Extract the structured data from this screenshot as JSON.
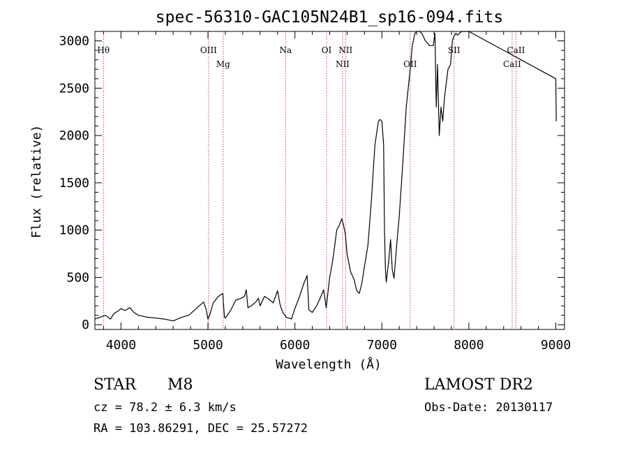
{
  "chart_data": {
    "type": "line",
    "title": "spec-56310-GAC105N24B1_sp16-094.fits",
    "xlabel": "Wavelength (Å)",
    "ylabel": "Flux (relative)",
    "xlim": [
      3700,
      9100
    ],
    "ylim": [
      -50,
      3100
    ],
    "xticks": [
      4000,
      5000,
      6000,
      7000,
      8000,
      9000
    ],
    "yticks": [
      0,
      500,
      1000,
      1500,
      2000,
      2500,
      3000
    ],
    "xtick_labels": [
      "4000",
      "5000",
      "6000",
      "7000",
      "8000",
      "9000"
    ],
    "ytick_labels": [
      "0",
      "500",
      "1000",
      "1500",
      "2000",
      "2500",
      "3000"
    ],
    "grid": false,
    "lines": [
      {
        "label": "Hθ",
        "x": 3798,
        "pos": "top"
      },
      {
        "label": "OIII",
        "x": 5007,
        "pos": "top"
      },
      {
        "label": "Mg",
        "x": 5175,
        "pos": "mid"
      },
      {
        "label": "Na",
        "x": 5893,
        "pos": "top"
      },
      {
        "label": "OI",
        "x": 6364,
        "pos": "top"
      },
      {
        "label": "NII",
        "x": 6548,
        "pos": "mid"
      },
      {
        "label": "NII",
        "x": 6583,
        "pos": "top"
      },
      {
        "label": "OII",
        "x": 7325,
        "pos": "mid"
      },
      {
        "label": "SII",
        "x": 7830,
        "pos": "top"
      },
      {
        "label": "CaII",
        "x": 8498,
        "pos": "mid"
      },
      {
        "label": "CaII",
        "x": 8542,
        "pos": "top"
      }
    ],
    "series": [
      {
        "x": [
          3700,
          3760,
          3820,
          3880,
          3920,
          3960,
          4000,
          4050,
          4100,
          4150,
          4200,
          4300,
          4400,
          4500,
          4600,
          4700,
          4780,
          4840,
          4900,
          4950,
          4980,
          5000,
          5020,
          5060,
          5120,
          5170,
          5190,
          5200,
          5260,
          5320,
          5380,
          5420,
          5440,
          5460,
          5500,
          5550,
          5580,
          5600,
          5650,
          5700,
          5750,
          5800,
          5830,
          5860,
          5900,
          5960,
          6000,
          6050,
          6100,
          6140,
          6160,
          6170,
          6200,
          6250,
          6300,
          6330,
          6360,
          6400,
          6430,
          6460,
          6480,
          6510,
          6540,
          6560,
          6580,
          6600,
          6640,
          6680,
          6710,
          6740,
          6770,
          6800,
          6840,
          6880,
          6920,
          6960,
          6980,
          7000,
          7020,
          7030,
          7040,
          7050,
          7080,
          7100,
          7120,
          7140,
          7170,
          7200,
          7240,
          7280,
          7320,
          7350,
          7380,
          7400,
          7430,
          7460,
          7500,
          7550,
          7590,
          7610,
          7625,
          7640,
          7660,
          7680,
          7700,
          7720,
          7740,
          7760,
          7790,
          7810,
          7830,
          7850,
          7870,
          7890,
          7920,
          7960,
          8000,
          8200,
          8400,
          8600,
          8800,
          9000,
          9005
        ],
        "y": [
          60,
          80,
          100,
          60,
          120,
          140,
          170,
          150,
          180,
          130,
          100,
          80,
          70,
          60,
          40,
          80,
          100,
          150,
          200,
          240,
          160,
          60,
          100,
          230,
          300,
          330,
          80,
          70,
          150,
          260,
          280,
          300,
          370,
          180,
          200,
          240,
          280,
          200,
          300,
          270,
          230,
          360,
          210,
          130,
          80,
          60,
          170,
          290,
          430,
          520,
          160,
          150,
          130,
          200,
          300,
          370,
          180,
          500,
          650,
          850,
          1000,
          1050,
          1120,
          1050,
          960,
          750,
          560,
          480,
          360,
          330,
          440,
          620,
          840,
          1320,
          1900,
          2150,
          2170,
          2150,
          1900,
          1000,
          600,
          450,
          680,
          900,
          580,
          490,
          840,
          1150,
          1700,
          2300,
          2650,
          2950,
          3080,
          3120,
          3120,
          3080,
          3000,
          2950,
          2950,
          3080,
          2300,
          2750,
          2000,
          2300,
          2150,
          2400,
          2550,
          2700,
          2750,
          3000,
          3050,
          3080,
          3060,
          3080,
          3100,
          3100,
          3100,
          3000,
          2900,
          2800,
          2700,
          2600,
          2150
        ]
      }
    ]
  },
  "info": {
    "object_class": "STAR",
    "subclass": "M8",
    "survey": "LAMOST DR2",
    "cz": "cz = 78.2 ± 6.3 km/s",
    "obs_date": "Obs-Date: 20130117",
    "coords": "RA = 103.86291, DEC =  25.57272"
  }
}
